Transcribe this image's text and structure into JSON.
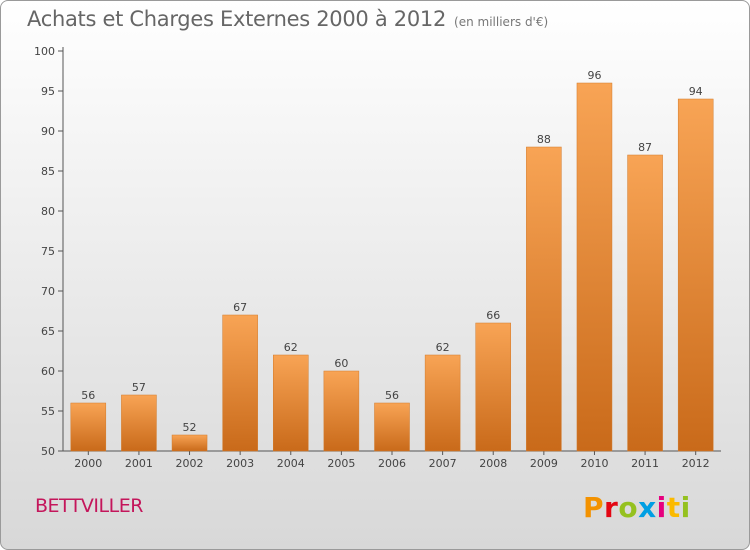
{
  "chart_data": {
    "type": "bar",
    "title": "Achats et Charges Externes 2000 à 2012",
    "unit_note": "(en milliers d'€)",
    "categories": [
      "2000",
      "2001",
      "2002",
      "2003",
      "2004",
      "2005",
      "2006",
      "2007",
      "2008",
      "2009",
      "2010",
      "2011",
      "2012"
    ],
    "values": [
      56,
      57,
      52,
      67,
      62,
      60,
      56,
      62,
      66,
      88,
      96,
      87,
      94
    ],
    "ylim": [
      50,
      100
    ],
    "yticks": [
      50,
      55,
      60,
      65,
      70,
      75,
      80,
      85,
      90,
      95,
      100
    ],
    "grid": false,
    "bar_color_top": "#f8a455",
    "bar_color_bottom": "#c96a1a"
  },
  "footer": {
    "commune": "BETTVILLER",
    "logo_text": "Proxiti"
  }
}
